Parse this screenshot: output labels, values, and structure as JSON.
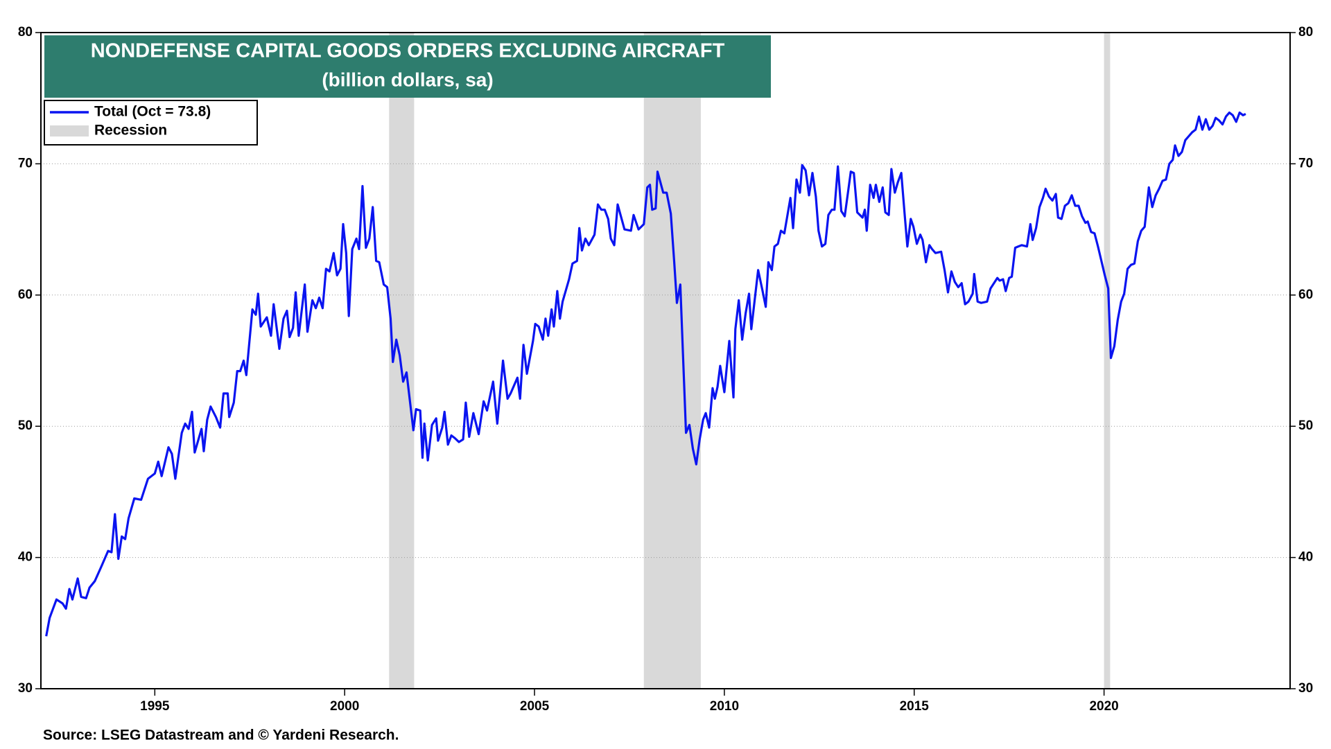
{
  "chart_data": {
    "type": "line",
    "title": "NONDEFENSE CAPITAL GOODS ORDERS EXCLUDING AIRCRAFT",
    "subtitle": "(billion dollars, sa)",
    "source": "Source: LSEG Datastream and © Yardeni Research.",
    "xlim": [
      1992,
      2024.9
    ],
    "xticks": [
      1995,
      2000,
      2005,
      2010,
      2015,
      2020
    ],
    "ylim": [
      30,
      80
    ],
    "yticks": [
      30,
      40,
      50,
      60,
      70,
      80
    ],
    "y2lim": [
      30,
      80
    ],
    "y2ticks": [
      30,
      40,
      50,
      60,
      70,
      80
    ],
    "grid": true,
    "legend": "top-left",
    "recessions": {
      "name": "Recession",
      "color": "#d9d9d9",
      "spans": [
        [
          2001.17,
          2001.83
        ],
        [
          2007.88,
          2009.38
        ],
        [
          2020.0,
          2020.16
        ]
      ]
    },
    "x": [
      1992.14,
      1992.23,
      1992.41,
      1992.57,
      1992.66,
      1992.75,
      1992.83,
      1992.97,
      1993.06,
      1993.19,
      1993.28,
      1993.42,
      1993.59,
      1993.77,
      1993.86,
      1993.95,
      1994.04,
      1994.13,
      1994.22,
      1994.31,
      1994.46,
      1994.64,
      1994.82,
      1995.0,
      1995.09,
      1995.18,
      1995.36,
      1995.45,
      1995.54,
      1995.71,
      1995.8,
      1995.89,
      1995.98,
      1996.05,
      1996.23,
      1996.29,
      1996.38,
      1996.47,
      1996.61,
      1996.72,
      1996.81,
      1996.92,
      1996.96,
      1997.08,
      1997.17,
      1997.25,
      1997.34,
      1997.41,
      1997.57,
      1997.66,
      1997.72,
      1997.79,
      1997.95,
      1998.06,
      1998.13,
      1998.28,
      1998.39,
      1998.48,
      1998.55,
      1998.64,
      1998.71,
      1998.79,
      1998.95,
      1999.02,
      1999.15,
      1999.24,
      1999.33,
      1999.42,
      1999.51,
      1999.6,
      1999.71,
      1999.8,
      1999.89,
      1999.96,
      2000.04,
      2000.11,
      2000.2,
      2000.31,
      2000.38,
      2000.47,
      2000.56,
      2000.65,
      2000.74,
      2000.83,
      2000.91,
      2001.03,
      2001.12,
      2001.21,
      2001.27,
      2001.36,
      2001.45,
      2001.54,
      2001.63,
      2001.81,
      2001.88,
      2001.99,
      2002.05,
      2002.1,
      2002.19,
      2002.3,
      2002.41,
      2002.46,
      2002.57,
      2002.63,
      2002.72,
      2002.81,
      2002.9,
      2003.01,
      2003.12,
      2003.19,
      2003.28,
      2003.39,
      2003.53,
      2003.66,
      2003.75,
      2003.91,
      2004.02,
      2004.17,
      2004.29,
      2004.37,
      2004.55,
      2004.62,
      2004.71,
      2004.8,
      2004.96,
      2005.02,
      2005.11,
      2005.22,
      2005.29,
      2005.36,
      2005.45,
      2005.51,
      2005.6,
      2005.67,
      2005.74,
      2005.91,
      2006.0,
      2006.12,
      2006.18,
      2006.25,
      2006.34,
      2006.43,
      2006.58,
      2006.67,
      2006.76,
      2006.85,
      2006.94,
      2007.01,
      2007.1,
      2007.19,
      2007.37,
      2007.54,
      2007.61,
      2007.74,
      2007.88,
      2007.97,
      2008.04,
      2008.1,
      2008.19,
      2008.24,
      2008.39,
      2008.48,
      2008.59,
      2008.68,
      2008.75,
      2008.84,
      2008.91,
      2008.99,
      2009.08,
      2009.17,
      2009.26,
      2009.35,
      2009.44,
      2009.51,
      2009.6,
      2009.69,
      2009.75,
      2009.82,
      2009.89,
      2010.0,
      2010.13,
      2010.24,
      2010.29,
      2010.38,
      2010.47,
      2010.56,
      2010.65,
      2010.71,
      2010.89,
      2011.0,
      2011.09,
      2011.16,
      2011.25,
      2011.32,
      2011.41,
      2011.49,
      2011.58,
      2011.74,
      2011.81,
      2011.9,
      2011.99,
      2012.05,
      2012.14,
      2012.23,
      2012.32,
      2012.41,
      2012.48,
      2012.57,
      2012.66,
      2012.74,
      2012.83,
      2012.9,
      2012.99,
      2013.08,
      2013.17,
      2013.26,
      2013.33,
      2013.41,
      2013.5,
      2013.64,
      2013.7,
      2013.75,
      2013.84,
      2013.93,
      2013.99,
      2014.08,
      2014.17,
      2014.24,
      2014.33,
      2014.4,
      2014.49,
      2014.57,
      2014.66,
      2014.75,
      2014.82,
      2014.91,
      2014.98,
      2015.07,
      2015.16,
      2015.22,
      2015.31,
      2015.4,
      2015.47,
      2015.56,
      2015.71,
      2015.8,
      2015.89,
      2015.98,
      2016.07,
      2016.16,
      2016.25,
      2016.34,
      2016.43,
      2016.54,
      2016.58,
      2016.67,
      2016.76,
      2016.92,
      2017.01,
      2017.1,
      2017.19,
      2017.25,
      2017.34,
      2017.41,
      2017.5,
      2017.57,
      2017.66,
      2017.74,
      2017.83,
      2017.97,
      2018.06,
      2018.12,
      2018.21,
      2018.3,
      2018.39,
      2018.46,
      2018.55,
      2018.64,
      2018.73,
      2018.79,
      2018.88,
      2018.97,
      2019.06,
      2019.15,
      2019.24,
      2019.33,
      2019.42,
      2019.51,
      2019.57,
      2019.66,
      2019.75,
      2019.84,
      2019.93,
      2020.02,
      2020.11,
      2020.18,
      2020.27,
      2020.36,
      2020.45,
      2020.53,
      2020.62,
      2020.71,
      2020.8,
      2020.89,
      2020.98,
      2021.07,
      2021.18,
      2021.27,
      2021.36,
      2021.45,
      2021.54,
      2021.63,
      2021.72,
      2021.81,
      2021.87,
      2021.96,
      2022.05,
      2022.14,
      2022.23,
      2022.32,
      2022.41,
      2022.5,
      2022.59,
      2022.68,
      2022.77,
      2022.86,
      2022.94,
      2023.03,
      2023.12,
      2023.21,
      2023.3,
      2023.39,
      2023.48,
      2023.57,
      2023.66,
      2023.73
    ],
    "series": [
      {
        "name": "Total (Oct = 73.8)",
        "color": "#0a14f0",
        "values": [
          34.0,
          35.4,
          36.8,
          36.5,
          36.1,
          37.6,
          36.8,
          38.4,
          37.0,
          36.9,
          37.7,
          38.2,
          39.3,
          40.5,
          40.4,
          43.3,
          39.9,
          41.6,
          41.4,
          43.0,
          44.5,
          44.4,
          46.0,
          46.4,
          47.3,
          46.2,
          48.4,
          47.9,
          46.0,
          49.5,
          50.2,
          49.8,
          51.1,
          48.0,
          49.8,
          48.1,
          50.5,
          51.5,
          50.7,
          49.9,
          52.5,
          52.5,
          50.7,
          51.8,
          54.2,
          54.2,
          55.0,
          53.9,
          58.9,
          58.5,
          60.1,
          57.6,
          58.3,
          56.9,
          59.3,
          55.9,
          58.2,
          58.8,
          56.8,
          57.5,
          60.2,
          56.9,
          60.8,
          57.2,
          59.6,
          59.0,
          59.8,
          59.0,
          62.0,
          61.8,
          63.2,
          61.5,
          62.0,
          65.4,
          63.2,
          58.4,
          63.5,
          64.3,
          63.5,
          68.3,
          63.6,
          64.3,
          66.7,
          62.6,
          62.5,
          60.8,
          60.6,
          58.2,
          54.9,
          56.6,
          55.4,
          53.4,
          54.1,
          49.7,
          51.3,
          51.2,
          47.6,
          50.2,
          47.4,
          50.1,
          50.6,
          48.9,
          49.9,
          51.1,
          48.6,
          49.3,
          49.1,
          48.8,
          49.0,
          51.8,
          49.2,
          51.0,
          49.4,
          51.9,
          51.2,
          53.4,
          50.2,
          55.0,
          52.1,
          52.5,
          53.7,
          52.1,
          56.2,
          54.0,
          56.5,
          57.8,
          57.6,
          56.6,
          58.2,
          56.9,
          58.9,
          57.6,
          60.3,
          58.2,
          59.5,
          61.2,
          62.4,
          62.6,
          65.1,
          63.4,
          64.3,
          63.8,
          64.6,
          66.9,
          66.5,
          66.5,
          65.8,
          64.3,
          63.8,
          66.9,
          65.0,
          64.9,
          66.1,
          65.0,
          65.4,
          68.2,
          68.4,
          66.5,
          66.6,
          69.4,
          67.8,
          67.8,
          66.2,
          62.5,
          59.4,
          60.8,
          55.5,
          49.5,
          50.1,
          48.3,
          47.1,
          49.0,
          50.5,
          51.0,
          49.9,
          52.9,
          52.1,
          53.0,
          54.6,
          52.6,
          56.5,
          52.2,
          57.4,
          59.6,
          56.6,
          58.6,
          60.1,
          57.4,
          61.9,
          60.4,
          59.1,
          62.5,
          61.9,
          63.7,
          63.9,
          64.9,
          64.7,
          67.4,
          65.1,
          68.8,
          67.8,
          69.9,
          69.5,
          67.6,
          69.3,
          67.5,
          64.9,
          63.7,
          63.9,
          66.1,
          66.5,
          66.5,
          69.8,
          66.4,
          66.0,
          67.9,
          69.4,
          69.3,
          66.3,
          65.9,
          66.5,
          64.9,
          68.4,
          67.4,
          68.4,
          67.1,
          68.2,
          66.3,
          66.1,
          69.6,
          67.8,
          68.6,
          69.3,
          66.1,
          63.7,
          65.8,
          65.2,
          63.9,
          64.6,
          64.2,
          62.5,
          63.8,
          63.5,
          63.2,
          63.3,
          61.9,
          60.2,
          61.8,
          61.0,
          60.6,
          60.9,
          59.3,
          59.5,
          60.1,
          61.6,
          59.5,
          59.4,
          59.5,
          60.5,
          60.9,
          61.3,
          61.1,
          61.2,
          60.3,
          61.3,
          61.4,
          63.6,
          63.7,
          63.8,
          63.7,
          65.4,
          64.2,
          65.1,
          66.7,
          67.4,
          68.1,
          67.5,
          67.2,
          67.7,
          65.9,
          65.8,
          66.8,
          67.0,
          67.6,
          66.8,
          66.8,
          66.0,
          65.5,
          65.6,
          64.8,
          64.7,
          63.7,
          62.6,
          61.5,
          60.5,
          55.2,
          56.1,
          58.1,
          59.5,
          60.1,
          62.0,
          62.3,
          62.4,
          64.1,
          64.9,
          65.2,
          68.2,
          66.7,
          67.6,
          68.1,
          68.7,
          68.8,
          70.0,
          70.3,
          71.4,
          70.6,
          70.9,
          71.8,
          72.1,
          72.4,
          72.6,
          73.6,
          72.6,
          73.4,
          72.6,
          72.9,
          73.5,
          73.3,
          73.0,
          73.6,
          73.9,
          73.7,
          73.2,
          73.9,
          73.7,
          73.8
        ]
      }
    ]
  }
}
